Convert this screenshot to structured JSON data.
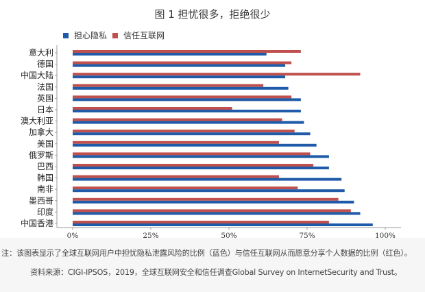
{
  "chart_data": {
    "type": "bar",
    "orientation": "horizontal",
    "title": "图 1  担忧很多，拒绝很少",
    "xlabel": "",
    "ylabel": "",
    "xlim": [
      0,
      100
    ],
    "x_ticks": [
      "0%",
      "25%",
      "50%",
      "75%",
      "100%"
    ],
    "x_tick_values": [
      0,
      25,
      50,
      75,
      100
    ],
    "grid": false,
    "legend_position": "top-left",
    "categories": [
      "意大利",
      "德国",
      "中国大陆",
      "法国",
      "英国",
      "日本",
      "澳大利亚",
      "加拿大",
      "美国",
      "俄罗斯",
      "巴西",
      "韩国",
      "南非",
      "墨西哥",
      "印度",
      "中国香港"
    ],
    "series": [
      {
        "name": "担心隐私",
        "color": "#1F5BA8",
        "values": [
          62,
          68,
          68,
          69,
          73,
          73,
          74,
          76,
          78,
          82,
          82,
          86,
          87,
          90,
          92,
          96
        ]
      },
      {
        "name": "信任互联网",
        "color": "#C0504D",
        "values": [
          73,
          70,
          92,
          61,
          70,
          51,
          67,
          71,
          66,
          76,
          77,
          66,
          72,
          85,
          89,
          82
        ]
      }
    ]
  },
  "footer": {
    "note": "注：该图表显示了全球互联网用户中担忧隐私泄露风险的比例（蓝色）与信任互联网从而愿意分享个人数据的比例（红色）。",
    "source": "资料来源：CIGI-IPSOS，2019，全球互联网安全和信任调查Global Survey on InternetSecurity and Trust。"
  }
}
